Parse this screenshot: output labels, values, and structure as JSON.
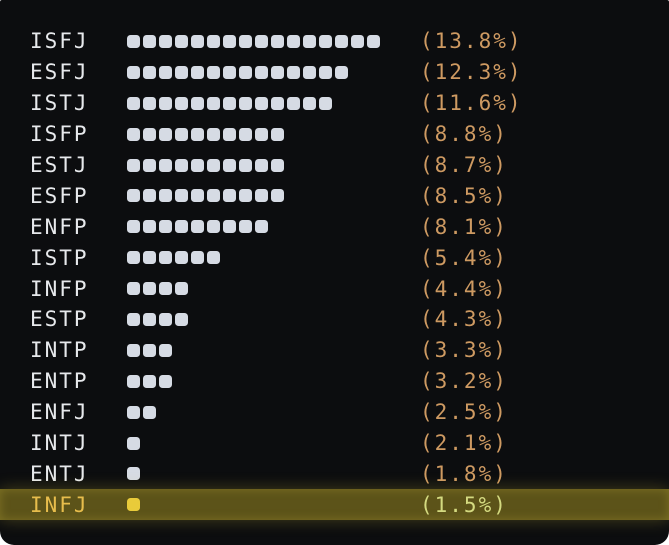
{
  "chart_data": {
    "type": "bar",
    "orientation": "horizontal",
    "title": "",
    "xlabel": "",
    "ylabel": "",
    "legend": "none",
    "grid": false,
    "categories": [
      "ISFJ",
      "ESFJ",
      "ISTJ",
      "ISFP",
      "ESTJ",
      "ESFP",
      "ENFP",
      "ISTP",
      "INFP",
      "ESTP",
      "INTP",
      "ENTP",
      "ENFJ",
      "INTJ",
      "ENTJ",
      "INFJ"
    ],
    "values": [
      13.8,
      12.3,
      11.6,
      8.8,
      8.7,
      8.5,
      8.1,
      5.4,
      4.4,
      4.3,
      3.3,
      3.2,
      2.5,
      2.1,
      1.8,
      1.5
    ],
    "value_labels": [
      "(13.8%)",
      "(12.3%)",
      "(11.6%)",
      "(8.8%)",
      "(8.7%)",
      "(8.5%)",
      "(8.1%)",
      "(5.4%)",
      "(4.4%)",
      "(4.3%)",
      "(3.3%)",
      "(3.2%)",
      "(2.5%)",
      "(2.1%)",
      "(1.8%)",
      "(1.5%)"
    ],
    "blocks": [
      16,
      14,
      13,
      10,
      10,
      10,
      9,
      6,
      4,
      4,
      3,
      3,
      2,
      1,
      1,
      1
    ],
    "highlighted": "INFJ"
  },
  "colors": {
    "background": "#0c0d0f",
    "label_text": "#e7e9ec",
    "bar_block": "#d6dbe4",
    "percent_text": "#ce9a62",
    "highlight_band": "rgba(212,190,40,0.40)",
    "highlight_label": "#e7bd4c",
    "highlight_block": "#e9cb3a",
    "highlight_percent": "#d4da80"
  }
}
